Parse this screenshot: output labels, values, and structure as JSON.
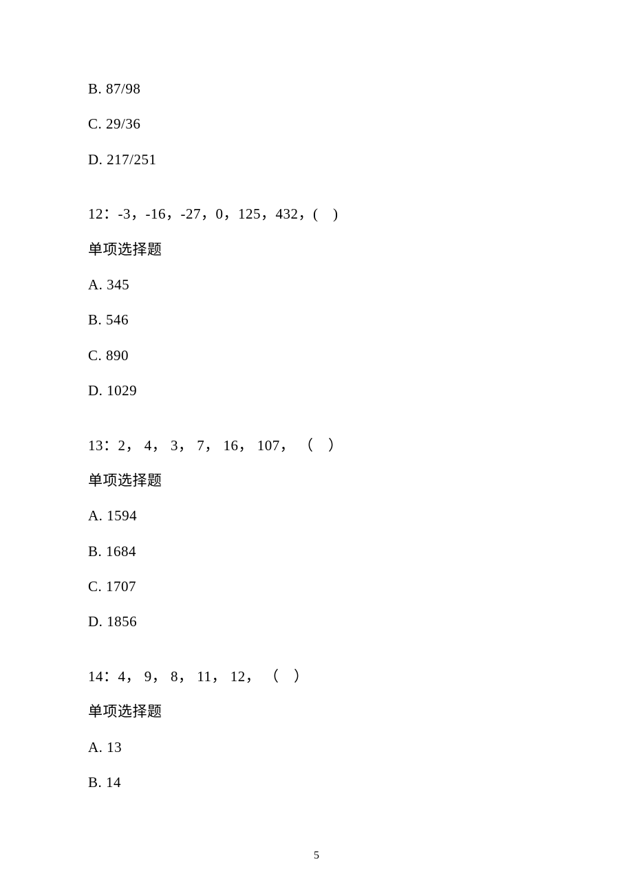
{
  "page": {
    "background_color": "#ffffff",
    "text_color": "#000000",
    "font_family": "SimSun",
    "font_size": 21,
    "page_number": "5"
  },
  "orphan_options": [
    {
      "label": "B.",
      "value": "87/98"
    },
    {
      "label": "C.",
      "value": "29/36"
    },
    {
      "label": "D.",
      "value": "217/251"
    }
  ],
  "questions": [
    {
      "number": "12：",
      "text": "-3，-16，-27，0，125，432，(　)",
      "type": "单项选择题",
      "options": [
        {
          "label": "A.",
          "value": "345"
        },
        {
          "label": "B.",
          "value": "546"
        },
        {
          "label": "C.",
          "value": "890"
        },
        {
          "label": "D.",
          "value": "1029"
        }
      ]
    },
    {
      "number": "13：",
      "text": "2， 4， 3， 7， 16， 107， （　）",
      "type": "单项选择题",
      "options": [
        {
          "label": "A.",
          "value": "1594"
        },
        {
          "label": "B.",
          "value": "1684"
        },
        {
          "label": "C.",
          "value": "1707"
        },
        {
          "label": "D.",
          "value": "1856"
        }
      ]
    },
    {
      "number": "14：",
      "text": "4， 9， 8， 11， 12， （　）",
      "type": "单项选择题",
      "options": [
        {
          "label": "A.",
          "value": "13"
        },
        {
          "label": "B.",
          "value": "14"
        }
      ]
    }
  ]
}
